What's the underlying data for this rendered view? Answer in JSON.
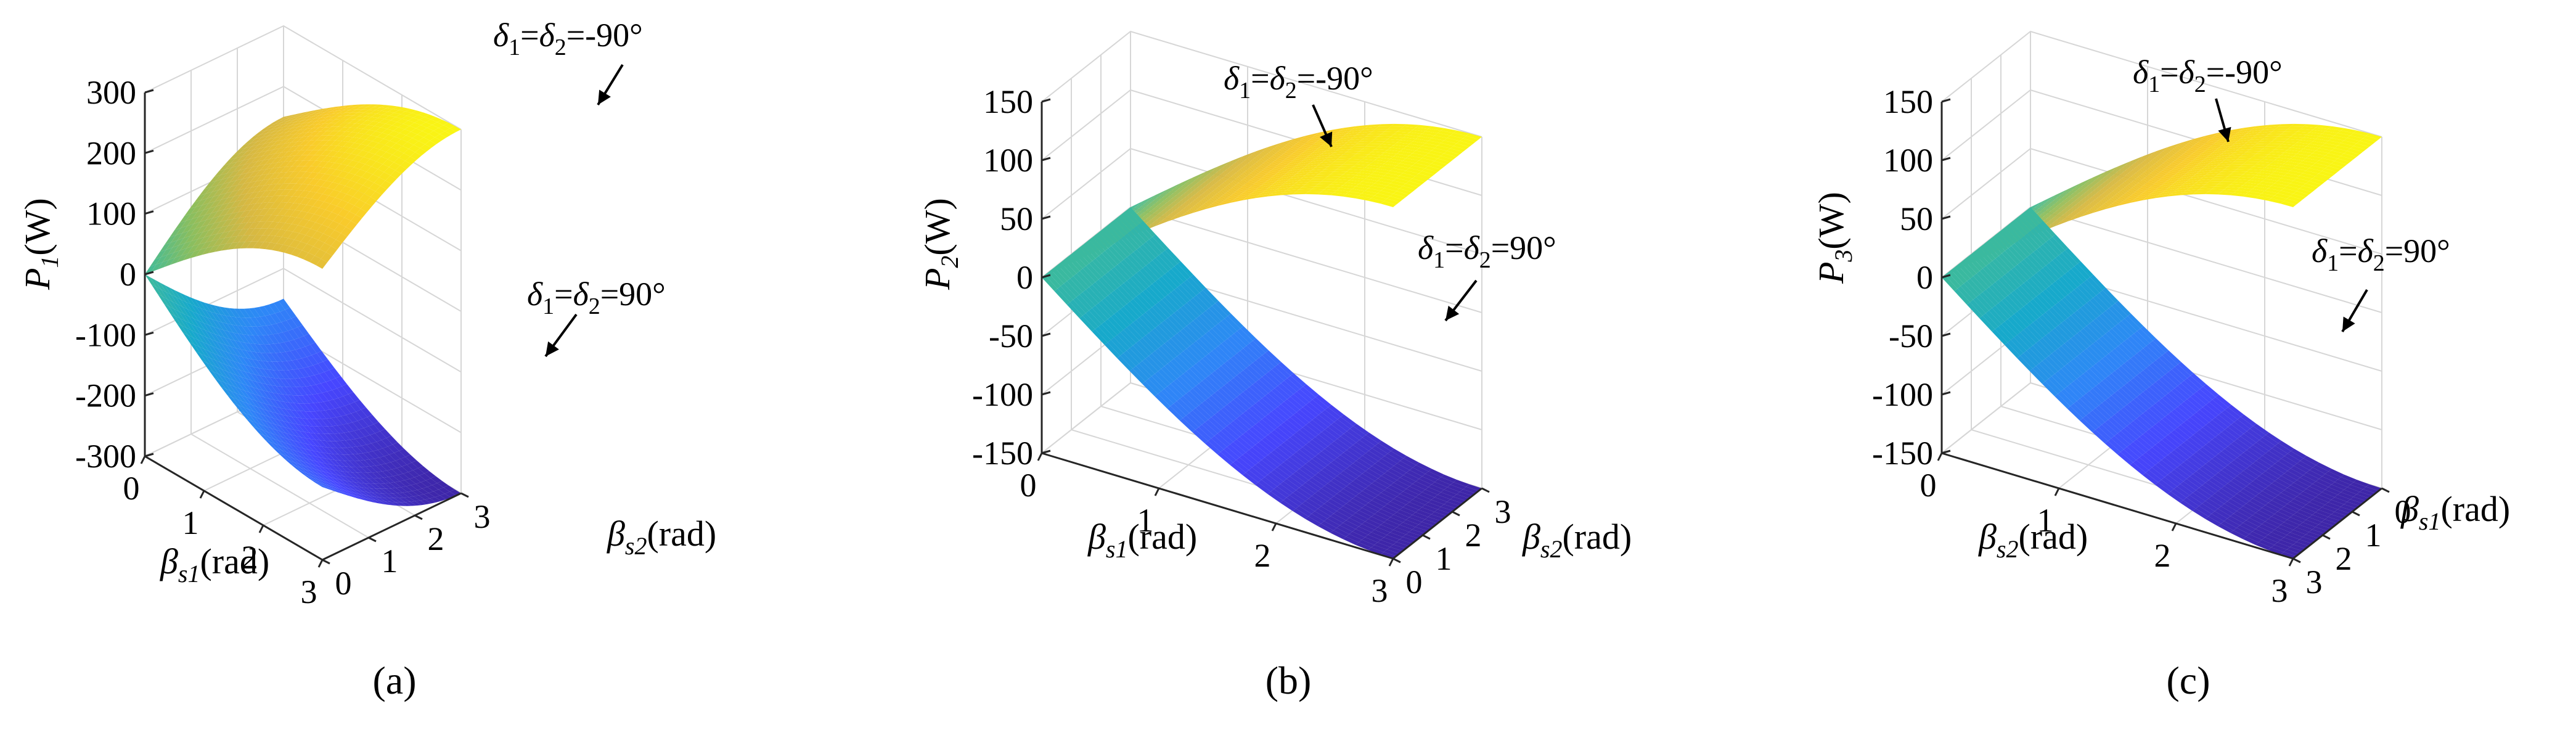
{
  "figure": {
    "captions": [
      "(a)",
      "(b)",
      "(c)"
    ]
  },
  "colors": {
    "colormap": [
      "#3e26a8",
      "#4746ff",
      "#2e87f7",
      "#17a9cb",
      "#3ebb9a",
      "#8bbe5e",
      "#d6b843",
      "#f9cb2b",
      "#f9f514"
    ],
    "grid": "#d6d6d6",
    "axis": "#262626"
  },
  "chart_data": [
    {
      "type": "surface",
      "panel": "(a)",
      "zlabel": {
        "base": "P",
        "sub": "1",
        "unit": "(W)"
      },
      "xlabel": {
        "base": "β",
        "sub": "s1",
        "unit": "(rad)"
      },
      "ylabel": {
        "base": "β",
        "sub": "s2",
        "unit": "(rad)"
      },
      "x_ticks": [
        "0",
        "1",
        "2",
        "3"
      ],
      "y_ticks": [
        "0",
        "1",
        "2",
        "3"
      ],
      "z_ticks": [
        "300",
        "200",
        "100",
        "0",
        "-100",
        "-200",
        "-300"
      ],
      "xlim": [
        0,
        3.14
      ],
      "ylim": [
        0,
        3.14
      ],
      "zlim": [
        -300,
        300
      ],
      "grid": true,
      "surfaces": [
        {
          "label": "δ1=δ2=-90°",
          "corner_values": {
            "origin": 0,
            "x_end": 180,
            "y_end": 150,
            "far": 300
          }
        },
        {
          "label": "δ1=δ2=90°",
          "corner_values": {
            "origin": 0,
            "x_end": -180,
            "y_end": -150,
            "far": -300
          }
        }
      ],
      "annotations": [
        {
          "parts": [
            "δ",
            "1",
            "=",
            "δ",
            "2",
            "=-90°"
          ]
        },
        {
          "parts": [
            "δ",
            "1",
            "=",
            "δ",
            "2",
            "=90°"
          ]
        }
      ]
    },
    {
      "type": "surface",
      "panel": "(b)",
      "zlabel": {
        "base": "P",
        "sub": "2",
        "unit": "(W)"
      },
      "xlabel": {
        "base": "β",
        "sub": "s1",
        "unit": "(rad)"
      },
      "ylabel": {
        "base": "β",
        "sub": "s2",
        "unit": "(rad)"
      },
      "x_ticks": [
        "0",
        "1",
        "2",
        "3"
      ],
      "y_ticks": [
        "0",
        "1",
        "2",
        "3"
      ],
      "z_ticks": [
        "150",
        "100",
        "50",
        "0",
        "-50",
        "-100",
        "-150"
      ],
      "xlim": [
        0,
        3.14
      ],
      "ylim": [
        0,
        3.14
      ],
      "zlim": [
        -150,
        150
      ],
      "grid": true,
      "surfaces": [
        {
          "label": "δ1=δ2=-90°",
          "corner_values": {
            "origin": 0,
            "x_end": 150,
            "y_end": 0,
            "far": 150
          }
        },
        {
          "label": "δ1=δ2=90°",
          "corner_values": {
            "origin": 0,
            "x_end": -150,
            "y_end": 0,
            "far": -150
          }
        }
      ],
      "annotations": [
        {
          "parts": [
            "δ",
            "1",
            "=",
            "δ",
            "2",
            "=-90°"
          ]
        },
        {
          "parts": [
            "δ",
            "1",
            "=",
            "δ",
            "2",
            "=90°"
          ]
        }
      ]
    },
    {
      "type": "surface",
      "panel": "(c)",
      "zlabel": {
        "base": "P",
        "sub": "3",
        "unit": "(W)"
      },
      "xlabel": {
        "base": "β",
        "sub": "s2",
        "unit": "(rad)"
      },
      "ylabel": {
        "base": "β",
        "sub": "s1",
        "unit": "(rad)"
      },
      "x_ticks": [
        "0",
        "1",
        "2",
        "3"
      ],
      "y_ticks": [
        "3",
        "2",
        "1",
        "0"
      ],
      "z_ticks": [
        "150",
        "100",
        "50",
        "0",
        "-50",
        "-100",
        "-150"
      ],
      "xlim": [
        0,
        3.14
      ],
      "ylim": [
        3.14,
        0
      ],
      "zlim": [
        -150,
        150
      ],
      "grid": true,
      "surfaces": [
        {
          "label": "δ1=δ2=-90°",
          "corner_values": {
            "origin": 0,
            "x_end": 150,
            "y_end": 0,
            "far": 150
          }
        },
        {
          "label": "δ1=δ2=90°",
          "corner_values": {
            "origin": 0,
            "x_end": -150,
            "y_end": 0,
            "far": -150
          }
        }
      ],
      "annotations": [
        {
          "parts": [
            "δ",
            "1",
            "=",
            "δ",
            "2",
            "=-90°"
          ]
        },
        {
          "parts": [
            "δ",
            "1",
            "=",
            "δ",
            "2",
            "=90°"
          ]
        }
      ]
    }
  ]
}
